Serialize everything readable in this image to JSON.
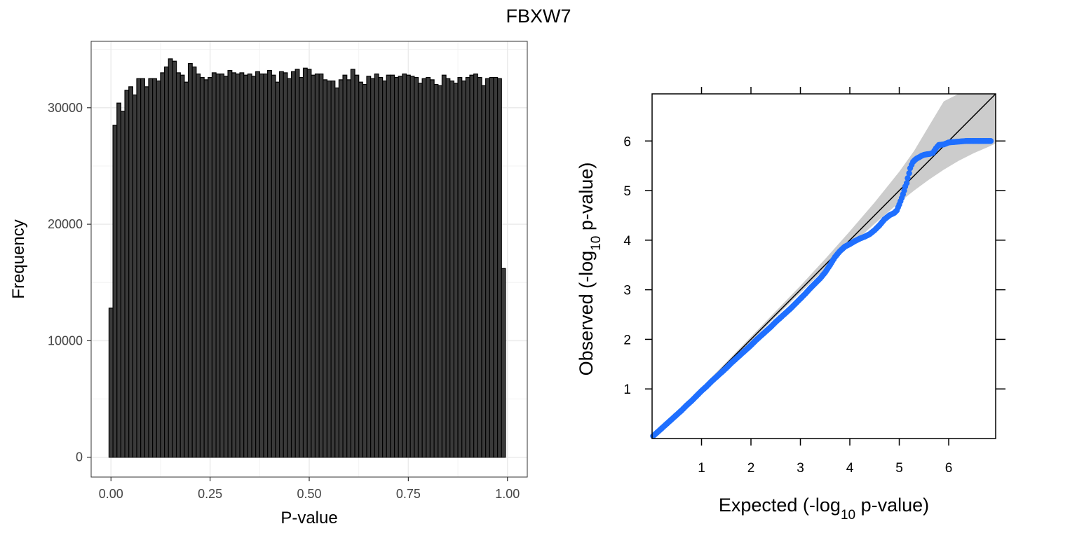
{
  "title": "FBXW7",
  "chart_data": [
    {
      "type": "bar",
      "chart": "histogram",
      "xlabel": "P-value",
      "ylabel": "Frequency",
      "xlim": [
        -0.05,
        1.05
      ],
      "ylim": [
        -1700,
        35700
      ],
      "xticks": [
        0,
        0.25,
        0.5,
        0.75,
        1
      ],
      "xtick_labels": [
        "0.00",
        "0.25",
        "0.50",
        "0.75",
        "1.00"
      ],
      "yticks": [
        0,
        10000,
        20000,
        30000
      ],
      "ytick_labels": [
        "0",
        "10000",
        "20000",
        "30000"
      ],
      "grid": true,
      "bin_width": 0.01,
      "bin_start": -0.005,
      "values": [
        12800,
        28500,
        30400,
        29700,
        31500,
        31800,
        31100,
        32500,
        32500,
        31800,
        32500,
        32500,
        32300,
        33000,
        33500,
        34200,
        34000,
        33000,
        32800,
        32200,
        33800,
        33500,
        32900,
        32600,
        32400,
        32600,
        33000,
        32900,
        32900,
        32700,
        33200,
        33000,
        32900,
        33000,
        32800,
        32900,
        32700,
        33100,
        32900,
        32900,
        33200,
        32800,
        32200,
        33100,
        33000,
        32500,
        33100,
        33300,
        32600,
        33400,
        33300,
        32800,
        32900,
        32900,
        32400,
        32300,
        32300,
        31700,
        32400,
        32800,
        32400,
        33300,
        32800,
        32200,
        32000,
        32700,
        32500,
        32900,
        32600,
        32300,
        32800,
        32800,
        32600,
        32700,
        32900,
        32800,
        32700,
        32600,
        32100,
        32500,
        32600,
        32400,
        32000,
        31900,
        32800,
        32500,
        32300,
        32100,
        32600,
        32300,
        32600,
        32800,
        32900,
        32600,
        31900,
        32500,
        32600,
        32600,
        32500,
        16200
      ],
      "colors": {
        "bar_fill": "#3a3a3a",
        "bar_edge": "#000000",
        "panel_border": "#333333",
        "grid": "#ebebeb"
      }
    },
    {
      "type": "scatter",
      "chart": "qq-plot",
      "xlabel": "Expected (-log10 p-value)",
      "ylabel": "Observed (-log10 p-value)",
      "xlabel_parts": [
        "Expected (-log",
        "10",
        " p-value)"
      ],
      "ylabel_parts": [
        "Observed (-log",
        "10",
        " p-value)"
      ],
      "xlim": [
        0,
        6.95
      ],
      "ylim": [
        0,
        6.95
      ],
      "xticks": [
        1,
        2,
        3,
        4,
        5,
        6
      ],
      "xtick_labels": [
        "1",
        "2",
        "3",
        "4",
        "5",
        "6"
      ],
      "yticks": [
        1,
        2,
        3,
        4,
        5,
        6
      ],
      "ytick_labels": [
        "1",
        "2",
        "3",
        "4",
        "5",
        "6"
      ],
      "grid": false,
      "reference_line": {
        "from": [
          0,
          0
        ],
        "to": [
          6.95,
          6.95
        ]
      },
      "confidence_band": {
        "x": [
          0,
          1,
          2,
          3,
          3.5,
          4,
          4.5,
          5,
          5.3,
          5.6,
          5.9,
          6.2,
          6.5,
          6.8,
          6.95
        ],
        "lower": [
          0,
          0.97,
          1.96,
          2.94,
          3.42,
          3.88,
          4.33,
          4.76,
          5.0,
          5.22,
          5.42,
          5.6,
          5.75,
          5.88,
          5.95
        ],
        "upper": [
          0,
          1.03,
          2.05,
          3.08,
          3.62,
          4.18,
          4.76,
          5.38,
          5.8,
          6.3,
          6.8,
          7.3,
          7.8,
          8.3,
          8.5
        ]
      },
      "points": {
        "x": [
          0.02,
          0.1,
          0.2,
          0.3,
          0.4,
          0.5,
          0.6,
          0.7,
          0.8,
          0.9,
          1.0,
          1.1,
          1.2,
          1.3,
          1.4,
          1.5,
          1.6,
          1.7,
          1.8,
          1.9,
          2.0,
          2.1,
          2.2,
          2.3,
          2.4,
          2.5,
          2.6,
          2.7,
          2.8,
          2.9,
          3.0,
          3.1,
          3.2,
          3.3,
          3.4,
          3.5,
          3.6,
          3.7,
          3.8,
          3.9,
          4.0,
          4.1,
          4.2,
          4.3,
          4.4,
          4.5,
          4.6,
          4.7,
          4.8,
          4.9,
          4.95,
          5.0,
          5.05,
          5.1,
          5.12,
          5.15,
          5.17,
          5.2,
          5.22,
          5.25,
          5.28,
          5.32,
          5.36,
          5.4,
          5.45,
          5.5,
          5.55,
          5.62,
          5.68,
          5.74,
          5.8,
          5.9,
          6.0,
          6.12,
          6.35,
          6.85
        ],
        "y": [
          0.05,
          0.12,
          0.21,
          0.3,
          0.39,
          0.48,
          0.57,
          0.67,
          0.76,
          0.86,
          0.96,
          1.05,
          1.15,
          1.24,
          1.33,
          1.42,
          1.52,
          1.61,
          1.7,
          1.79,
          1.88,
          1.98,
          2.07,
          2.16,
          2.25,
          2.35,
          2.44,
          2.53,
          2.62,
          2.72,
          2.82,
          2.92,
          3.03,
          3.13,
          3.23,
          3.35,
          3.5,
          3.66,
          3.78,
          3.87,
          3.92,
          3.98,
          4.03,
          4.07,
          4.12,
          4.2,
          4.3,
          4.42,
          4.5,
          4.55,
          4.6,
          4.72,
          4.85,
          5.0,
          5.08,
          5.15,
          5.25,
          5.35,
          5.45,
          5.52,
          5.58,
          5.62,
          5.65,
          5.67,
          5.7,
          5.72,
          5.73,
          5.74,
          5.76,
          5.85,
          5.92,
          5.93,
          5.97,
          5.98,
          6.0,
          6.0
        ],
        "color": "#1f6fff"
      },
      "colors": {
        "band": "#cccccc",
        "line": "#000000",
        "frame": "#000000"
      }
    }
  ]
}
